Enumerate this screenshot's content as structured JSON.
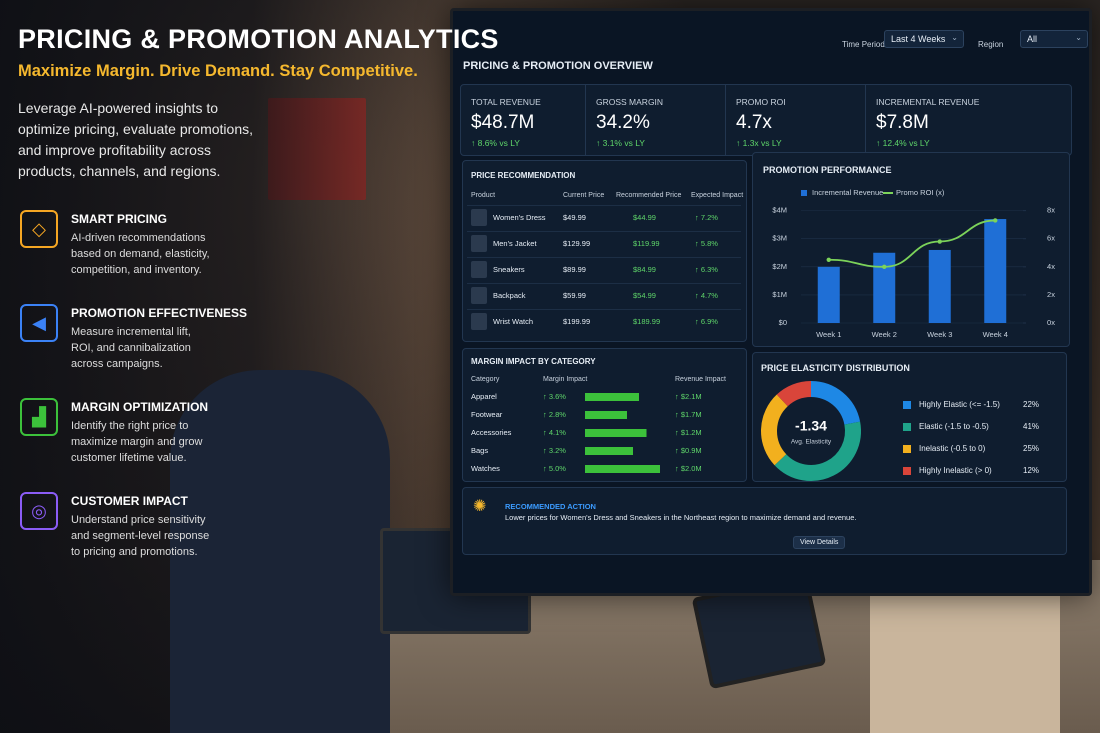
{
  "header": {
    "title": "PRICING & PROMOTION ANALYTICS",
    "subtitle": "Maximize Margin. Drive Demand. Stay Competitive.",
    "description": "Leverage AI-powered insights to optimize pricing, evaluate promotions, and improve profitability across products, channels, and regions."
  },
  "features": [
    {
      "title": "SMART PRICING",
      "description": "AI-driven recommendations based on demand, elasticity, competition, and inventory."
    },
    {
      "title": "PROMOTION EFFECTIVENESS",
      "description": "Measure incremental lift, ROI, and cannibalization across campaigns."
    },
    {
      "title": "MARGIN OPTIMIZATION",
      "description": "Identify the right price to maximize margin and grow customer lifetime value."
    },
    {
      "title": "CUSTOMER IMPACT",
      "description": "Understand price sensitivity and segment-level response to pricing and promotions."
    }
  ],
  "dashboard": {
    "filters": [
      {
        "label": "Time Period",
        "value": "Last 4 Weeks"
      },
      {
        "label": "Region",
        "value": "All"
      }
    ],
    "title": "PRICING & PROMOTION OVERVIEW",
    "kpis": [
      {
        "label": "TOTAL REVENUE",
        "value": "$48.7M",
        "change": "↑ 8.6% vs LY"
      },
      {
        "label": "GROSS MARGIN",
        "value": "34.2%",
        "change": "↑ 3.1% vs LY"
      },
      {
        "label": "PROMO ROI",
        "value": "4.7x",
        "change": "↑ 1.3x vs LY"
      },
      {
        "label": "INCREMENTAL REVENUE",
        "value": "$7.8M",
        "change": "↑ 12.4% vs LY"
      }
    ],
    "price_recommendation": {
      "title": "PRICE RECOMMENDATION",
      "columns": [
        "Product",
        "Current Price",
        "Recommended Price",
        "Expected Impact"
      ],
      "rows": [
        [
          "Women's Dress",
          "$49.99",
          "$44.99",
          "↑ 7.2%"
        ],
        [
          "Men's Jacket",
          "$129.99",
          "$119.99",
          "↑ 5.8%"
        ],
        [
          "Sneakers",
          "$89.99",
          "$84.99",
          "↑ 6.3%"
        ],
        [
          "Backpack",
          "$59.99",
          "$54.99",
          "↑ 4.7%"
        ],
        [
          "Wrist Watch",
          "$199.99",
          "$189.99",
          "↑ 6.9%"
        ]
      ]
    },
    "margin_impact": {
      "type": "bar",
      "title": "MARGIN IMPACT BY CATEGORY",
      "columns": [
        "Category",
        "Margin Impact",
        "Revenue Impact"
      ],
      "categories": [
        "Apparel",
        "Footwear",
        "Accessories",
        "Bags",
        "Watches"
      ],
      "values": [
        3.6,
        2.8,
        4.1,
        3.2,
        5.0
      ],
      "value_labels": [
        "↑ 3.6%",
        "↑ 2.8%",
        "↑ 4.1%",
        "↑ 3.2%",
        "↑ 5.0%"
      ],
      "revenue_labels": [
        "↑ $2.1M",
        "↑ $1.7M",
        "↑ $1.2M",
        "↑ $0.9M",
        "↑ $2.0M"
      ],
      "color": "#3cc13b"
    },
    "promotion_performance": {
      "type": "bar",
      "title": "PROMOTION PERFORMANCE",
      "categories": [
        "Week 1",
        "Week 2",
        "Week 3",
        "Week 4"
      ],
      "series": [
        {
          "name": "Incremental Revenue",
          "color": "#1f6fd6",
          "values": [
            2.0,
            2.5,
            2.6,
            3.7
          ]
        },
        {
          "name": "Promo ROI (x)",
          "color": "#7cd35a",
          "values": [
            4.5,
            4.0,
            5.8,
            7.3
          ],
          "axis": "y2"
        }
      ],
      "ylim": [
        0,
        4.2
      ],
      "yticks": [
        {
          "value": 0,
          "label": "$0"
        },
        {
          "value": 1,
          "label": "$1M"
        },
        {
          "value": 2,
          "label": "$2M"
        },
        {
          "value": 3,
          "label": "$3M"
        },
        {
          "value": 4,
          "label": "$4M"
        }
      ],
      "y2lim": [
        0,
        8.4
      ],
      "y2ticks": [
        {
          "value": 0,
          "label": "0x"
        },
        {
          "value": 2,
          "label": "2x"
        },
        {
          "value": 4,
          "label": "4x"
        },
        {
          "value": 6,
          "label": "6x"
        },
        {
          "value": 8,
          "label": "8x"
        }
      ]
    },
    "elasticity": {
      "type": "pie",
      "title": "PRICE ELASTICITY DISTRIBUTION",
      "center_value": "-1.34",
      "center_label": "Avg. Elasticity",
      "categories": [
        "Highly Elastic (<= -1.5)",
        "Elastic (-1.5 to -0.5)",
        "Inelastic (-0.5 to 0)",
        "Highly Inelastic (> 0)"
      ],
      "values": [
        22,
        41,
        25,
        12
      ],
      "value_labels": [
        "22%",
        "41%",
        "25%",
        "12%"
      ],
      "colors": [
        "#1e88e5",
        "#1fa38a",
        "#f2b01e",
        "#d9453a"
      ]
    },
    "recommended_action": {
      "title": "RECOMMENDED ACTION",
      "text": "Lower prices for Women's Dress and Sneakers in the Northeast region to maximize demand and revenue.",
      "button": "View Details"
    }
  }
}
